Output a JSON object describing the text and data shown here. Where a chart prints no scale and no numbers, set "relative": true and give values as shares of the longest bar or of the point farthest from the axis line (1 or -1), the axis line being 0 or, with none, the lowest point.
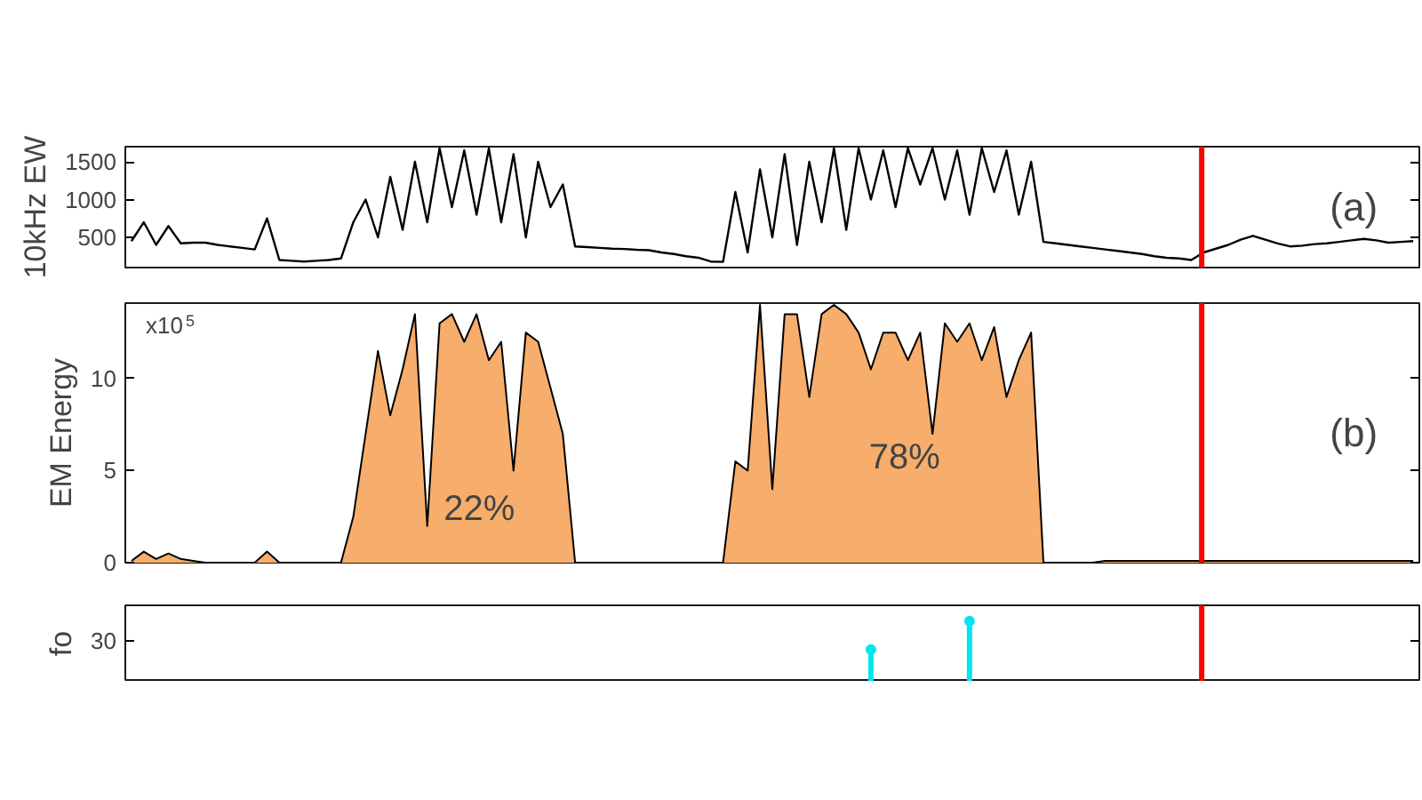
{
  "chart_data": [
    {
      "type": "line",
      "ylabel": "10kHz EW",
      "categories": [
        null,
        null,
        null,
        null,
        null,
        null,
        null,
        null,
        null,
        null,
        null,
        null,
        null,
        null,
        null,
        null,
        null,
        null,
        null,
        null,
        null,
        null,
        null,
        null,
        null,
        null,
        null,
        null,
        null,
        null,
        null,
        null,
        null,
        null,
        null,
        null,
        null,
        null,
        null,
        null,
        null,
        null,
        null,
        null,
        null,
        null,
        null,
        null,
        null,
        null,
        null,
        null,
        null,
        null,
        null,
        null,
        null,
        null,
        null,
        null,
        null,
        null,
        null,
        null,
        null,
        null,
        null,
        null,
        null,
        null,
        null,
        null,
        null,
        null,
        null,
        null,
        null,
        null,
        null,
        null,
        null,
        null,
        null,
        null,
        null,
        null,
        null,
        null,
        null,
        null,
        null,
        null,
        null,
        null,
        null,
        null,
        null,
        null,
        null,
        null,
        null,
        null,
        null,
        null,
        null
      ],
      "ylim": [
        100,
        1700
      ],
      "yticks": [
        500,
        1000,
        1500
      ],
      "tick_labels": "y",
      "grid": false,
      "series": [
        {
          "color": "#000000",
          "values": [
            450,
            700,
            400,
            650,
            420,
            430,
            430,
            400,
            380,
            360,
            340,
            750,
            200,
            190,
            180,
            190,
            200,
            220,
            700,
            1000,
            500,
            1300,
            600,
            1500,
            700,
            1680,
            900,
            1650,
            800,
            1680,
            700,
            1600,
            500,
            1500,
            900,
            1200,
            380,
            370,
            360,
            350,
            345,
            335,
            330,
            300,
            280,
            250,
            230,
            180,
            175,
            1100,
            300,
            1400,
            500,
            1600,
            400,
            1500,
            700,
            1680,
            600,
            1680,
            1000,
            1650,
            900,
            1680,
            1200,
            1680,
            1000,
            1650,
            800,
            1680,
            1100,
            1650,
            800,
            1500,
            440,
            420,
            400,
            380,
            360,
            340,
            320,
            300,
            280,
            250,
            230,
            220,
            200,
            300,
            350,
            400,
            470,
            520,
            470,
            420,
            380,
            390,
            410,
            420,
            440,
            460,
            480,
            460,
            430,
            440,
            450
          ]
        }
      ],
      "annotations": [
        "(a)"
      ]
    },
    {
      "type": "area",
      "ylabel": "EM Energy",
      "categories": [
        null,
        null,
        null,
        null,
        null,
        null,
        null,
        null,
        null,
        null,
        null,
        null,
        null,
        null,
        null,
        null,
        null,
        null,
        null,
        null,
        null,
        null,
        null,
        null,
        null,
        null,
        null,
        null,
        null,
        null,
        null,
        null,
        null,
        null,
        null,
        null,
        null,
        null,
        null,
        null,
        null,
        null,
        null,
        null,
        null,
        null,
        null,
        null,
        null,
        null,
        null,
        null,
        null,
        null,
        null,
        null,
        null,
        null,
        null,
        null,
        null,
        null,
        null,
        null,
        null,
        null,
        null,
        null,
        null,
        null,
        null,
        null,
        null,
        null,
        null,
        null,
        null,
        null,
        null,
        null,
        null,
        null,
        null,
        null,
        null,
        null,
        null,
        null,
        null,
        null,
        null,
        null,
        null,
        null,
        null,
        null,
        null,
        null,
        null,
        null,
        null,
        null,
        null,
        null,
        null
      ],
      "ylim": [
        0,
        14.1
      ],
      "yticks": [
        0,
        5,
        10
      ],
      "tick_labels": "y",
      "grid": false,
      "series": [
        {
          "color": "#f7ad6b",
          "values": [
            0.1,
            0.6,
            0.2,
            0.5,
            0.2,
            0.1,
            0,
            0,
            0,
            0,
            0,
            0.6,
            0,
            0,
            0,
            0,
            0,
            0,
            2.5,
            7,
            11.5,
            8,
            10.5,
            13.5,
            2,
            13,
            13.5,
            12,
            13.5,
            11,
            12,
            5,
            12.5,
            12,
            9.5,
            7,
            0,
            0,
            0,
            0,
            0,
            0,
            0,
            0,
            0,
            0,
            0,
            0,
            0,
            5.5,
            5,
            14,
            4,
            13.5,
            13.5,
            9,
            13.5,
            14,
            13.5,
            12.5,
            10.5,
            12.5,
            12.5,
            11,
            12.5,
            7,
            13,
            12,
            13,
            11,
            12.8,
            9,
            11,
            12.5,
            0,
            0,
            0,
            0,
            0,
            0.1,
            0.1,
            0.1,
            0.1,
            0.1,
            0.1,
            0.1,
            0.1,
            0.1,
            0.1,
            0.1,
            0.1,
            0.1,
            0.1,
            0.1,
            0.1,
            0.1,
            0.1,
            0.1,
            0.1,
            0.1,
            0.1,
            0.1,
            0.1,
            0.1,
            0.1
          ]
        }
      ],
      "annotations": [
        "x10$^{5}$",
        "22%",
        "78%",
        "(b)"
      ]
    },
    {
      "type": "lollipop",
      "ylabel": "fo",
      "relative": true,
      "categories": [
        null,
        null,
        null,
        null,
        null,
        null,
        null,
        null,
        null,
        null,
        null,
        null,
        null,
        null,
        null,
        null,
        null,
        null,
        null,
        null,
        null,
        null,
        null,
        null,
        null,
        null,
        null,
        null,
        null,
        null,
        null,
        null,
        null,
        null,
        null,
        null,
        null,
        null,
        null,
        null,
        null,
        null,
        null,
        null,
        null,
        null,
        null,
        null,
        null,
        null,
        null,
        null,
        null,
        null,
        null,
        null,
        null,
        null,
        null,
        null,
        null,
        null,
        null,
        null,
        null,
        null,
        null,
        null,
        null,
        null,
        null,
        null,
        null,
        null,
        null,
        null,
        null,
        null,
        null,
        null,
        null,
        null,
        null,
        null,
        null,
        null,
        null,
        null,
        null,
        null,
        null,
        null,
        null,
        null,
        null,
        null,
        null,
        null,
        null,
        null,
        null,
        null,
        null,
        null,
        null
      ],
      "marker": "circle",
      "series": [
        {
          "color": "#00e5ee",
          "values": [
            null,
            null,
            null,
            null,
            null,
            null,
            null,
            null,
            null,
            null,
            null,
            null,
            null,
            null,
            null,
            null,
            null,
            null,
            null,
            null,
            null,
            null,
            null,
            null,
            null,
            null,
            null,
            null,
            null,
            null,
            null,
            null,
            null,
            null,
            null,
            null,
            null,
            null,
            null,
            null,
            null,
            null,
            null,
            null,
            null,
            null,
            null,
            null,
            null,
            null,
            null,
            null,
            null,
            null,
            null,
            null,
            null,
            null,
            null,
            null,
            0.53,
            null,
            null,
            null,
            null,
            null,
            null,
            null,
            1,
            null,
            null,
            null,
            null,
            null,
            null,
            null,
            null,
            null,
            null,
            null,
            null,
            null,
            null,
            null,
            null,
            null,
            null,
            null,
            null,
            null,
            null,
            null,
            null,
            null,
            null,
            null,
            null,
            null,
            null,
            null,
            null,
            null,
            null,
            null,
            null
          ]
        }
      ],
      "annotations": [
        "30"
      ]
    }
  ]
}
